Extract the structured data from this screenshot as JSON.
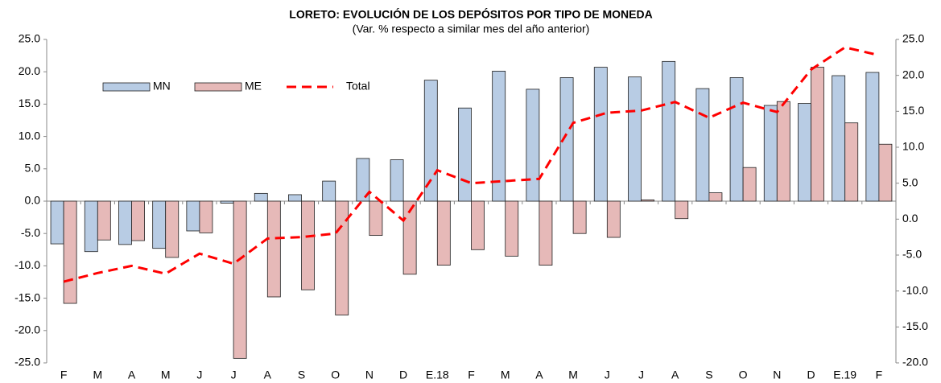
{
  "chart_data": {
    "type": "bar",
    "title": "LORETO: EVOLUCIÓN DE LOS DEPÓSITOS POR TIPO DE MONEDA",
    "subtitle": "(Var. % respecto a similar mes del año anterior)",
    "categories": [
      "F",
      "M",
      "A",
      "M",
      "J",
      "J",
      "A",
      "S",
      "O",
      "N",
      "D",
      "E.18",
      "F",
      "M",
      "A",
      "M",
      "J",
      "J",
      "A",
      "S",
      "O",
      "N",
      "D",
      "E.19",
      "F"
    ],
    "series": [
      {
        "name": "MN",
        "type": "bar",
        "color": "#b8cce4",
        "values": [
          -6.6,
          -7.8,
          -6.7,
          -7.3,
          -4.6,
          -0.3,
          1.2,
          1.0,
          3.1,
          6.6,
          6.4,
          18.7,
          14.4,
          20.1,
          17.3,
          19.1,
          20.7,
          19.2,
          21.6,
          17.4,
          19.1,
          14.8,
          15.1,
          19.4,
          19.9
        ]
      },
      {
        "name": "ME",
        "type": "bar",
        "color": "#e6b9b8",
        "values": [
          -15.8,
          -6.0,
          -6.1,
          -8.7,
          -4.9,
          -24.3,
          -14.8,
          -13.7,
          -17.6,
          -5.3,
          -11.3,
          -9.9,
          -7.5,
          -8.5,
          -9.9,
          -5.0,
          -5.6,
          0.2,
          -2.7,
          1.3,
          5.2,
          15.4,
          20.7,
          12.1,
          8.8
        ]
      },
      {
        "name": "Total",
        "type": "line",
        "axis": "y2",
        "color": "#ff0000",
        "dashed": true,
        "values": [
          -8.7,
          -7.5,
          -6.5,
          -7.6,
          -4.8,
          -6.2,
          -2.7,
          -2.5,
          -2.0,
          3.8,
          -0.2,
          6.8,
          5.0,
          5.3,
          5.6,
          13.4,
          14.8,
          15.1,
          16.3,
          14.1,
          16.2,
          14.9,
          20.8,
          23.9,
          22.8
        ]
      }
    ],
    "ylim": [
      -25,
      25
    ],
    "yticks": [
      {
        "value": -25,
        "label": "-25.0"
      },
      {
        "value": -20,
        "label": "-20.0"
      },
      {
        "value": -15,
        "label": "-15.0"
      },
      {
        "value": -10,
        "label": "-10.0"
      },
      {
        "value": -5,
        "label": "-5.0"
      },
      {
        "value": 0,
        "label": "0.0"
      },
      {
        "value": 5,
        "label": "5.0"
      },
      {
        "value": 10,
        "label": "10.0"
      },
      {
        "value": 15,
        "label": "15.0"
      },
      {
        "value": 20,
        "label": "20.0"
      },
      {
        "value": 25,
        "label": "25.0"
      }
    ],
    "y2lim": [
      -20,
      25
    ],
    "y2ticks": [
      {
        "value": -20,
        "label": "-20.0"
      },
      {
        "value": -15,
        "label": "-15.0"
      },
      {
        "value": -10,
        "label": "-10.0"
      },
      {
        "value": -5,
        "label": "-5.0"
      },
      {
        "value": 0,
        "label": "0.0"
      },
      {
        "value": 5,
        "label": "5.0"
      },
      {
        "value": 10,
        "label": "10.0"
      },
      {
        "value": 15,
        "label": "15.0"
      },
      {
        "value": 20,
        "label": "20.0"
      },
      {
        "value": 25,
        "label": "25.0"
      }
    ],
    "legend": "top-left"
  }
}
